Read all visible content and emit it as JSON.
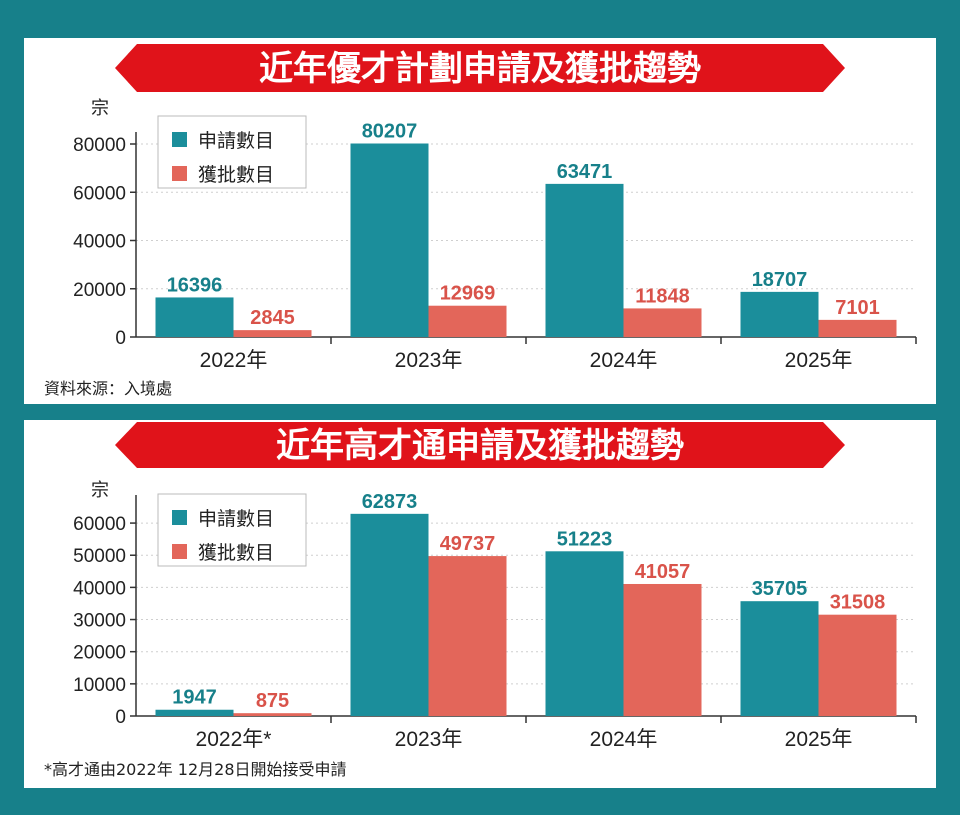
{
  "colors": {
    "apply": "#1b8e9b",
    "approve": "#e3665a",
    "banner": "#e0131a",
    "frame": "#17808a"
  },
  "chart_data": [
    {
      "type": "bar",
      "title": "近年優才計劃申請及獲批趨勢",
      "ylabel": "宗",
      "ylim": [
        0,
        80000
      ],
      "yticks": [
        "0",
        "20000",
        "40000",
        "60000",
        "80000"
      ],
      "categories": [
        "2022年",
        "2023年",
        "2024年",
        "2025年"
      ],
      "series": [
        {
          "name": "申請數目",
          "values": [
            16396,
            80207,
            63471,
            18707
          ],
          "labels": [
            "16396",
            "80207",
            "63471",
            "18707"
          ]
        },
        {
          "name": "獲批數目",
          "values": [
            2845,
            12969,
            11848,
            7101
          ],
          "labels": [
            "2845",
            "12969",
            "11848",
            "7101"
          ]
        }
      ],
      "grid": true,
      "legend": "top-left",
      "note": "資料來源：入境處"
    },
    {
      "type": "bar",
      "title": "近年高才通申請及獲批趨勢",
      "ylabel": "宗",
      "ylim": [
        0,
        65000
      ],
      "yticks": [
        "0",
        "10000",
        "20000",
        "30000",
        "40000",
        "50000",
        "60000"
      ],
      "categories": [
        "2022年*",
        "2023年",
        "2024年",
        "2025年"
      ],
      "series": [
        {
          "name": "申請數目",
          "values": [
            1947,
            62873,
            51223,
            35705
          ],
          "labels": [
            "1947",
            "62873",
            "51223",
            "35705"
          ]
        },
        {
          "name": "獲批數目",
          "values": [
            875,
            49737,
            41057,
            31508
          ],
          "labels": [
            "875",
            "49737",
            "41057",
            "31508"
          ]
        }
      ],
      "grid": true,
      "legend": "top-left",
      "note": "*高才通由2022年 12月28日開始接受申請"
    }
  ]
}
